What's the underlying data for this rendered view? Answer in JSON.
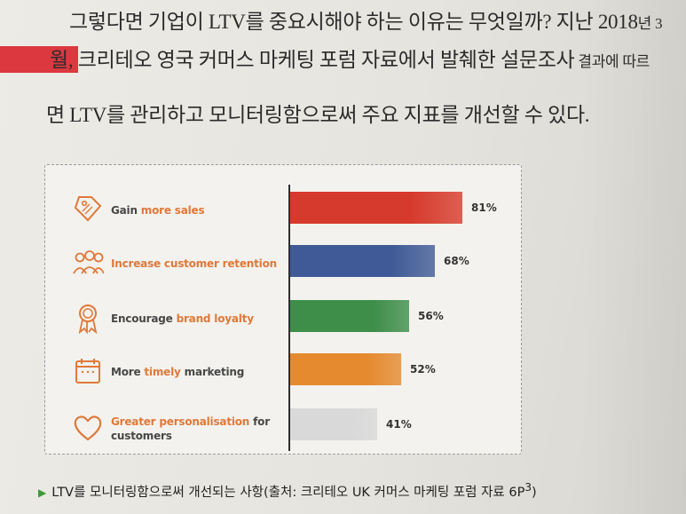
{
  "paragraph": {
    "line1_a": "그렇다면 기업이 LTV를 중요시해야 하는 이유는 무엇일까? 지난 2018",
    "line1_b": "년 3",
    "line2_a": "월, 크리테오 영국 커머스 마케팅 포럼 자료에서 발췌한 설문조사",
    "line2_b": " 결과에 따르",
    "line3": "면 LTV를 관리하고 모니터링함으로써 주요 지표를 개선할 수 있다."
  },
  "chart_data": {
    "type": "bar",
    "orientation": "horizontal",
    "categories": [
      "Gain more sales",
      "Increase customer retention",
      "Encourage brand loyalty",
      "More timely marketing",
      "Greater personalisation for customers"
    ],
    "values": [
      81,
      68,
      56,
      52,
      41
    ],
    "value_labels": [
      "81%",
      "68%",
      "56%",
      "52%",
      "41%"
    ],
    "xlim": [
      0,
      100
    ],
    "grid": false,
    "legend": "none",
    "bar_colors": [
      "#d63a2c",
      "#3f5a96",
      "#3e8e4a",
      "#e58a2f",
      "#d9d9d9"
    ],
    "highlight_color": "#e0793a",
    "icons": [
      "price-tag-icon",
      "people-icon",
      "award-ribbon-icon",
      "calendar-icon",
      "heart-icon"
    ],
    "label_parts": [
      {
        "plain": "Gain ",
        "highlight": "more sales",
        "plain2": ""
      },
      {
        "plain": "",
        "highlight": "Increase customer retention",
        "plain2": ""
      },
      {
        "plain": "Encourage ",
        "highlight": "brand loyalty",
        "plain2": ""
      },
      {
        "plain": "More ",
        "highlight": "timely",
        "plain2": " marketing"
      },
      {
        "plain": "",
        "highlight": "Greater personalisation",
        "plain2": " for customers"
      }
    ]
  },
  "caption": {
    "marker": "▶",
    "text": "LTV를 모니터링함으로써 개선되는 사항(출처: 크리테오 UK 커머스 마케팅 포럼 자료 6P",
    "superscript": "3",
    "close": ")"
  }
}
